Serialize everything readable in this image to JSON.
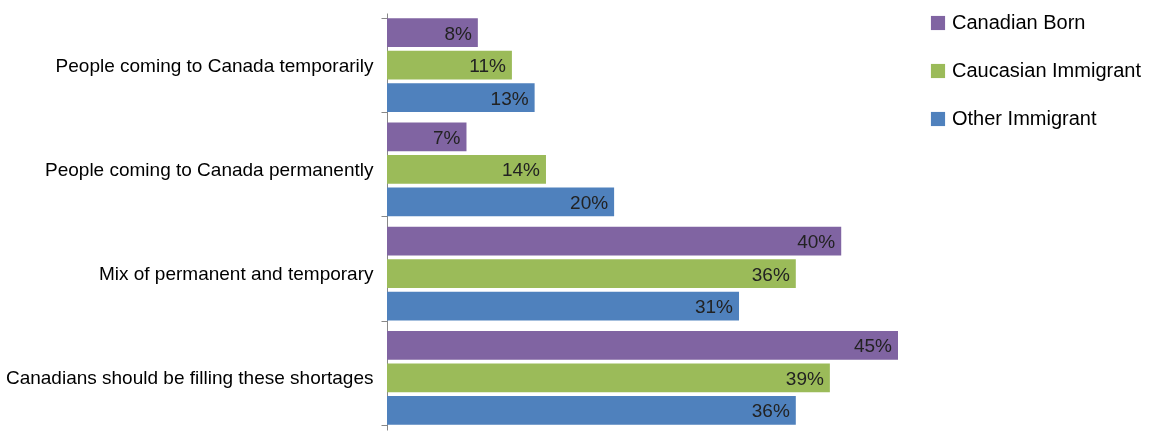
{
  "chart_data": {
    "type": "bar",
    "orientation": "horizontal",
    "legend": "right",
    "grid": false,
    "categories": [
      "People coming to Canada temporarily",
      "People coming to Canada permanently",
      "Mix of permanent and temporary",
      "Canadians should be filling these shortages"
    ],
    "series": [
      {
        "name": "Canadian Born",
        "color": "#8064a2",
        "values": [
          8,
          7,
          40,
          45
        ],
        "value_labels": [
          "8%",
          "7%",
          "40%",
          "45%"
        ]
      },
      {
        "name": "Caucasian Immigrant",
        "color": "#9bbb59",
        "values": [
          11,
          14,
          36,
          39
        ],
        "value_labels": [
          "11%",
          "14%",
          "36%",
          "39%"
        ]
      },
      {
        "name": "Other Immigrant",
        "color": "#4f81bd",
        "values": [
          13,
          20,
          31,
          36
        ],
        "value_labels": [
          "13%",
          "20%",
          "31%",
          "36%"
        ]
      }
    ]
  }
}
